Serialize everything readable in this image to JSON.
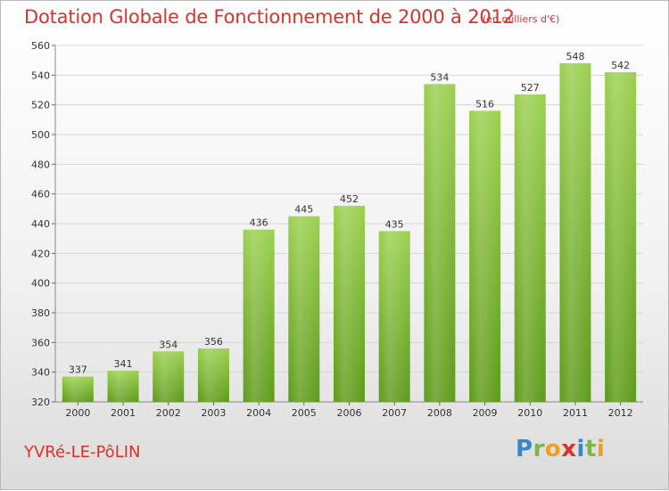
{
  "header": {
    "title": "Dotation Globale de Fonctionnement de 2000 à 2012",
    "unit": "(en milliers d'€)"
  },
  "footer": {
    "commune": "YVRé-LE-PôLIN",
    "logo": "Proxiti"
  },
  "colors": {
    "title": "#d9322b",
    "bar_top": "#9bd050",
    "bar_bottom": "#5e9a1a",
    "grid": "#d6d6d6"
  },
  "chart_data": {
    "type": "bar",
    "title": "Dotation Globale de Fonctionnement de 2000 à 2012",
    "subtitle": "(en milliers d'€)",
    "xlabel": "",
    "ylabel": "",
    "categories": [
      "2000",
      "2001",
      "2002",
      "2003",
      "2004",
      "2005",
      "2006",
      "2007",
      "2008",
      "2009",
      "2010",
      "2011",
      "2012"
    ],
    "values": [
      337,
      341,
      354,
      356,
      436,
      445,
      452,
      435,
      534,
      516,
      527,
      548,
      542
    ],
    "ylim": [
      320,
      560
    ],
    "yticks": [
      320,
      340,
      360,
      380,
      400,
      420,
      440,
      460,
      480,
      500,
      520,
      540,
      560
    ],
    "grid": true,
    "legend": "none"
  }
}
